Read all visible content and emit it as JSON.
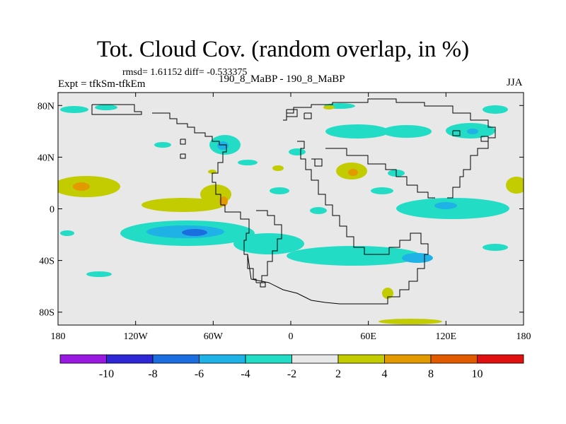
{
  "header": {
    "title": "Tot. Cloud Cov. (random overlap, in %)",
    "stats": "rmsd= 1.61152 diff= -0.533375",
    "experiment": "Expt = tfkSm-tfkEm",
    "period": "190_8_MaBP - 190_8_MaBP",
    "season": "JJA"
  },
  "axes": {
    "lat_ticks": [
      {
        "value": 80,
        "label": "80N"
      },
      {
        "value": 40,
        "label": "40N"
      },
      {
        "value": 0,
        "label": "0"
      },
      {
        "value": -40,
        "label": "40S"
      },
      {
        "value": -80,
        "label": "80S"
      }
    ],
    "lon_ticks": [
      {
        "value": -180,
        "label": "180"
      },
      {
        "value": -120,
        "label": "120W"
      },
      {
        "value": -60,
        "label": "60W"
      },
      {
        "value": 0,
        "label": "0"
      },
      {
        "value": 60,
        "label": "60E"
      },
      {
        "value": 120,
        "label": "120E"
      },
      {
        "value": 180,
        "label": "180"
      }
    ]
  },
  "colorbar": {
    "colors": [
      "#9a19e0",
      "#2d27d6",
      "#1b6ee0",
      "#1eb2e6",
      "#22dcc6",
      "#e8e8e8",
      "#c2cc00",
      "#e29a00",
      "#e25a00",
      "#e01010"
    ],
    "labels": [
      "-10",
      "-8",
      "-6",
      "-4",
      "-2",
      "2",
      "4",
      "8",
      "10"
    ],
    "label_color_boundaries": [
      1,
      2,
      3,
      4,
      5,
      6,
      7,
      8,
      9
    ]
  },
  "colors": {
    "background": "#e8e8e8",
    "coast": "#000000",
    "teal": "#22dcc6",
    "cyan": "#1eb2e6",
    "blue": "#1b6ee0",
    "yellow": "#c2cc00",
    "orange": "#e29a00"
  }
}
